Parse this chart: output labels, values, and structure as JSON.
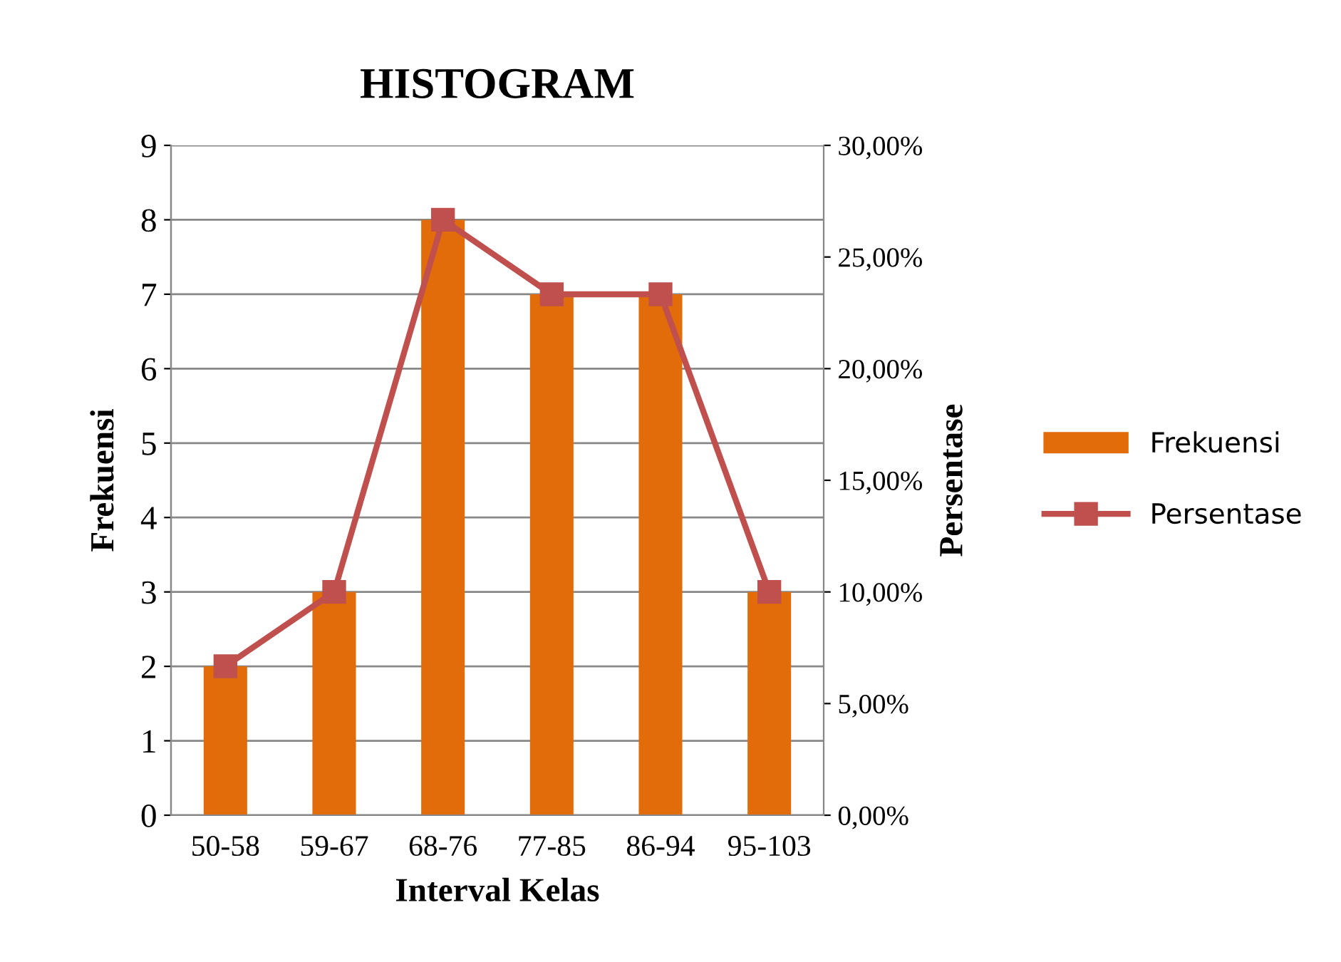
{
  "chart_data": {
    "type": "bar",
    "title": "HISTOGRAM",
    "xlabel": "Interval Kelas",
    "ylabel": "Frekuensi",
    "y2label": "Persentase",
    "categories": [
      "50-58",
      "59-67",
      "68-76",
      "77-85",
      "86-94",
      "95-103"
    ],
    "series": [
      {
        "name": "Frekuensi",
        "color": "#e36c0a",
        "values": [
          2,
          3,
          8,
          7,
          7,
          3
        ]
      },
      {
        "name": "Persentase",
        "type": "line",
        "axis": "y2",
        "color": "#c0504d",
        "marker": "square",
        "values": [
          6.67,
          10,
          26.67,
          23.33,
          23.33,
          10
        ]
      }
    ],
    "ylim": [
      0,
      9
    ],
    "yticks": [
      0,
      1,
      2,
      3,
      4,
      5,
      6,
      7,
      8,
      9
    ],
    "y2lim": [
      0,
      30
    ],
    "y2ticks": [
      {
        "value": 0,
        "label": "0,00%"
      },
      {
        "value": 5,
        "label": "5,00%"
      },
      {
        "value": 10,
        "label": "10,00%"
      },
      {
        "value": 15,
        "label": "15,00%"
      },
      {
        "value": 20,
        "label": "20,00%"
      },
      {
        "value": 25,
        "label": "25,00%"
      },
      {
        "value": 30,
        "label": "30,00%"
      }
    ],
    "grid": "y",
    "legend": "right"
  }
}
